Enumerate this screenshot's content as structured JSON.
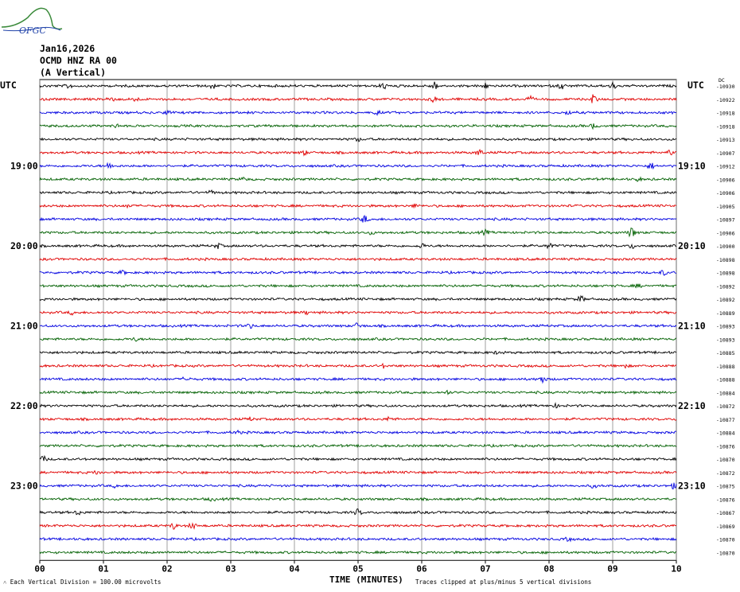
{
  "logo": {
    "text": "OFGC",
    "icon": "mountain-logo-icon"
  },
  "header": {
    "date": "Jan16,2026",
    "station": "OCMD HNZ RA 00",
    "component": "(A Vertical)"
  },
  "footer": {
    "scale_note": "Each Vertical Division =  100.00 microvolts",
    "clip_note": "Traces clipped at plus/minus 5 vertical divisions"
  },
  "chart_data": {
    "type": "line",
    "title": "",
    "xlabel": "TIME (MINUTES)",
    "ylabel": "",
    "x_ticks": [
      "00",
      "01",
      "02",
      "03",
      "04",
      "05",
      "06",
      "07",
      "08",
      "09",
      "10"
    ],
    "xlim": [
      0,
      10
    ],
    "left_axis_label": "UTC",
    "right_axis_label": "UTC",
    "right_corner_label": "DC",
    "left_time_labels": [
      {
        "row": 6,
        "label": "19:00"
      },
      {
        "row": 12,
        "label": "20:00"
      },
      {
        "row": 18,
        "label": "21:00"
      },
      {
        "row": 24,
        "label": "22:00"
      },
      {
        "row": 30,
        "label": "23:00"
      }
    ],
    "right_time_labels": [
      {
        "row": 6,
        "label": "19:10"
      },
      {
        "row": 12,
        "label": "20:10"
      },
      {
        "row": 18,
        "label": "21:10"
      },
      {
        "row": 24,
        "label": "22:10"
      },
      {
        "row": 30,
        "label": "23:10"
      }
    ],
    "trace_colors": [
      "#000000",
      "#e00000",
      "#0000e0",
      "#006000"
    ],
    "dc_offsets": [
      "-10930",
      "-10922",
      "-10918",
      "-10918",
      "-10913",
      "-10907",
      "-10912",
      "-10906",
      "-10906",
      "-10905",
      "-10897",
      "-10906",
      "-10900",
      "-10898",
      "-10898",
      "-10892",
      "-10892",
      "-10889",
      "-10893",
      "-10893",
      "-10885",
      "-10888",
      "-10888",
      "-10884",
      "-10872",
      "-10877",
      "-10884",
      "-10876",
      "-10870",
      "-10872",
      "-10875",
      "-10876",
      "-10867",
      "-10869",
      "-10870",
      "-10870"
    ],
    "events": [
      {
        "row": 0,
        "minute": 0.45,
        "amp": 3
      },
      {
        "row": 0,
        "minute": 2.7,
        "amp": 4
      },
      {
        "row": 0,
        "minute": 5.4,
        "amp": 4
      },
      {
        "row": 0,
        "minute": 6.2,
        "amp": 5
      },
      {
        "row": 0,
        "minute": 7.0,
        "amp": 3
      },
      {
        "row": 0,
        "minute": 8.2,
        "amp": 4
      },
      {
        "row": 0,
        "minute": 9.0,
        "amp": 4
      },
      {
        "row": 1,
        "minute": 1.1,
        "amp": 5
      },
      {
        "row": 1,
        "minute": 1.5,
        "amp": 3
      },
      {
        "row": 1,
        "minute": 6.2,
        "amp": 4
      },
      {
        "row": 1,
        "minute": 7.7,
        "amp": 3
      },
      {
        "row": 1,
        "minute": 8.7,
        "amp": 6
      },
      {
        "row": 2,
        "minute": 2.0,
        "amp": 2
      },
      {
        "row": 2,
        "minute": 5.3,
        "amp": 2
      },
      {
        "row": 2,
        "minute": 8.3,
        "amp": 2
      },
      {
        "row": 3,
        "minute": 1.2,
        "amp": 2
      },
      {
        "row": 3,
        "minute": 8.7,
        "amp": 3
      },
      {
        "row": 4,
        "minute": 5.0,
        "amp": 2
      },
      {
        "row": 5,
        "minute": 4.15,
        "amp": 3
      },
      {
        "row": 5,
        "minute": 6.9,
        "amp": 4
      },
      {
        "row": 5,
        "minute": 9.9,
        "amp": 3
      },
      {
        "row": 6,
        "minute": 1.1,
        "amp": 4
      },
      {
        "row": 6,
        "minute": 9.6,
        "amp": 4
      },
      {
        "row": 7,
        "minute": 3.2,
        "amp": 2
      },
      {
        "row": 7,
        "minute": 9.4,
        "amp": 2
      },
      {
        "row": 8,
        "minute": 2.7,
        "amp": 2
      },
      {
        "row": 9,
        "minute": 1.4,
        "amp": 2
      },
      {
        "row": 9,
        "minute": 5.9,
        "amp": 2
      },
      {
        "row": 10,
        "minute": 5.1,
        "amp": 5
      },
      {
        "row": 11,
        "minute": 5.2,
        "amp": 2
      },
      {
        "row": 11,
        "minute": 7.0,
        "amp": 3
      },
      {
        "row": 11,
        "minute": 9.3,
        "amp": 7
      },
      {
        "row": 12,
        "minute": 2.8,
        "amp": 3
      },
      {
        "row": 12,
        "minute": 6.0,
        "amp": 3
      },
      {
        "row": 12,
        "minute": 8.0,
        "amp": 4
      },
      {
        "row": 12,
        "minute": 9.3,
        "amp": 3
      },
      {
        "row": 14,
        "minute": 1.3,
        "amp": 2
      },
      {
        "row": 14,
        "minute": 9.8,
        "amp": 3
      },
      {
        "row": 15,
        "minute": 9.4,
        "amp": 2
      },
      {
        "row": 16,
        "minute": 8.5,
        "amp": 4
      },
      {
        "row": 17,
        "minute": 0.5,
        "amp": 2
      },
      {
        "row": 17,
        "minute": 4.2,
        "amp": 2
      },
      {
        "row": 18,
        "minute": 3.3,
        "amp": 3
      },
      {
        "row": 18,
        "minute": 5.0,
        "amp": 4
      },
      {
        "row": 19,
        "minute": 1.5,
        "amp": 2
      },
      {
        "row": 20,
        "minute": 7.2,
        "amp": 2
      },
      {
        "row": 21,
        "minute": 5.4,
        "amp": 2
      },
      {
        "row": 21,
        "minute": 9.2,
        "amp": 2
      },
      {
        "row": 22,
        "minute": 2.3,
        "amp": 3
      },
      {
        "row": 22,
        "minute": 7.9,
        "amp": 5
      },
      {
        "row": 23,
        "minute": 6.4,
        "amp": 2
      },
      {
        "row": 24,
        "minute": 8.1,
        "amp": 2
      },
      {
        "row": 25,
        "minute": 3.3,
        "amp": 2
      },
      {
        "row": 25,
        "minute": 5.5,
        "amp": 3
      },
      {
        "row": 26,
        "minute": 3.1,
        "amp": 2
      },
      {
        "row": 28,
        "minute": 0.05,
        "amp": 4
      },
      {
        "row": 29,
        "minute": 0.9,
        "amp": 2
      },
      {
        "row": 30,
        "minute": 1.2,
        "amp": 2
      },
      {
        "row": 30,
        "minute": 8.7,
        "amp": 2
      },
      {
        "row": 30,
        "minute": 9.95,
        "amp": 3
      },
      {
        "row": 31,
        "minute": 2.7,
        "amp": 2
      },
      {
        "row": 32,
        "minute": 0.6,
        "amp": 3
      },
      {
        "row": 32,
        "minute": 5.0,
        "amp": 4
      },
      {
        "row": 33,
        "minute": 2.1,
        "amp": 4
      },
      {
        "row": 33,
        "minute": 2.4,
        "amp": 4
      },
      {
        "row": 34,
        "minute": 8.3,
        "amp": 2
      }
    ]
  }
}
